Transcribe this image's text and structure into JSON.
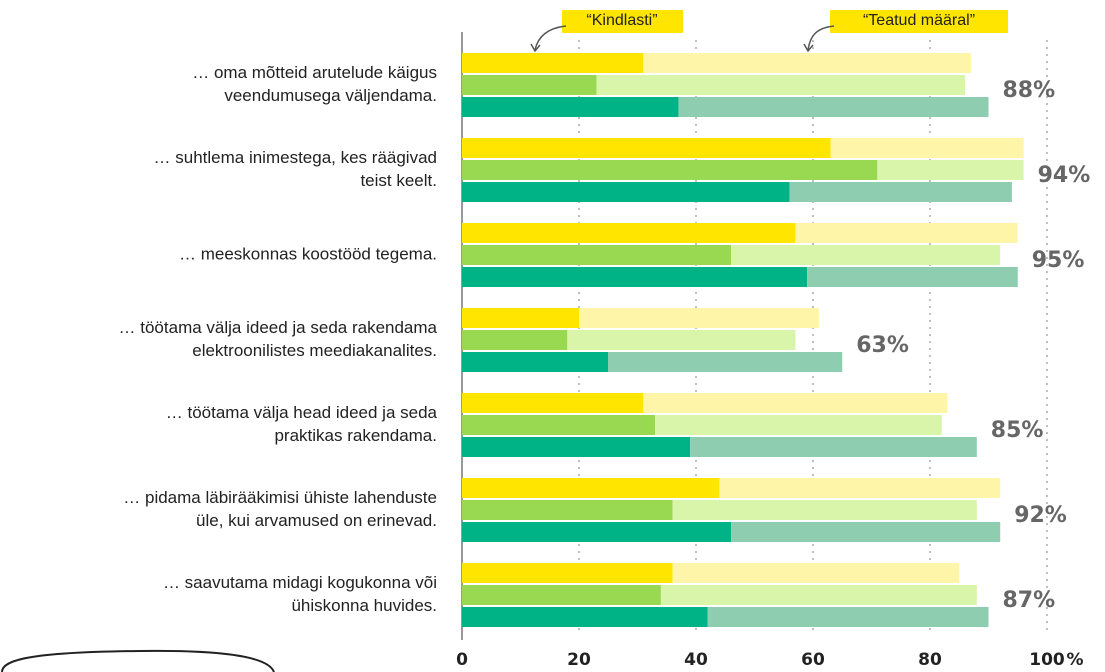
{
  "chart_data": {
    "type": "stacked-grouped-barh",
    "categories": [
      [
        "… oma mõtteid arutelude käigus",
        "veendumusega väljendama."
      ],
      [
        "… suhtlema inimestega, kes räägivad",
        "teist keelt."
      ],
      [
        "… meeskonnas koostööd tegema."
      ],
      [
        "… töötama välja ideed ja seda rakendama",
        "elektroonilistes meediakanalites."
      ],
      [
        "… töötama välja head ideed ja seda",
        "praktikas rakendama."
      ],
      [
        "… pidama läbirääkimisi ühiste lahenduste",
        "üle, kui arvamused on erinevad."
      ],
      [
        "… saavutama midagi kogukonna või",
        "ühiskonna huvides."
      ]
    ],
    "series": [
      {
        "name": "“Kindlasti”",
        "colors": [
          "#ffe500",
          "#99d851",
          "#00b387"
        ],
        "values": [
          [
            31,
            23,
            37
          ],
          [
            63,
            71,
            56
          ],
          [
            57,
            46,
            59
          ],
          [
            20,
            18,
            25
          ],
          [
            31,
            33,
            39
          ],
          [
            44,
            36,
            46
          ],
          [
            36,
            34,
            42
          ]
        ]
      },
      {
        "name": "“Teatud määral”",
        "colors": [
          "#fff5a8",
          "#d8f5aa",
          "#8ecdb0"
        ],
        "values": [
          [
            56,
            63,
            53
          ],
          [
            33,
            25,
            38
          ],
          [
            38,
            46,
            36
          ],
          [
            41,
            39,
            40
          ],
          [
            52,
            49,
            49
          ],
          [
            48,
            52,
            46
          ],
          [
            49,
            54,
            48
          ]
        ]
      }
    ],
    "totals": [
      88,
      94,
      95,
      63,
      85,
      92,
      87
    ],
    "total_labels": [
      "88%",
      "94%",
      "95%",
      "63%",
      "85%",
      "92%",
      "87%"
    ],
    "xlim": [
      0,
      100
    ],
    "xticks": [
      0,
      20,
      40,
      60,
      80,
      100
    ],
    "xlabel": "%",
    "grid": true
  }
}
